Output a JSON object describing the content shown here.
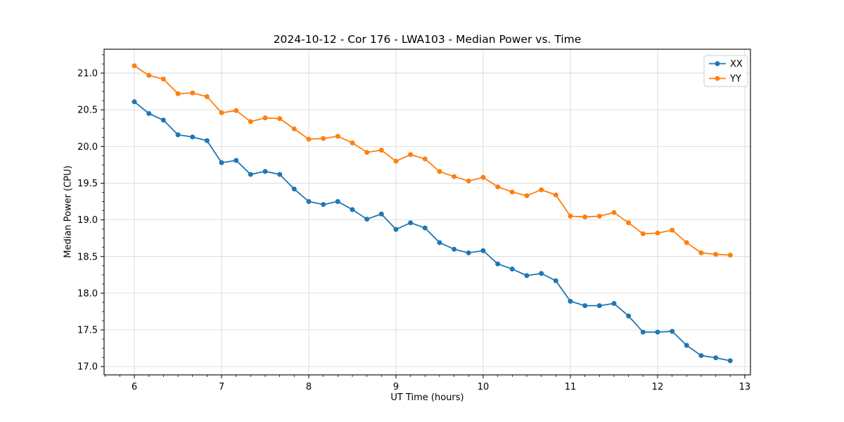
{
  "chart_data": {
    "type": "line",
    "title": "2024-10-12 - Cor 176 - LWA103 - Median Power vs. Time",
    "xlabel": "UT Time (hours)",
    "ylabel": "Median Power (CPU)",
    "legend_position": "upper right",
    "grid": true,
    "xlim": [
      5.653,
      13.065
    ],
    "ylim": [
      16.887,
      21.326
    ],
    "xticks": [
      6,
      7,
      8,
      9,
      10,
      11,
      12,
      13
    ],
    "yticks": [
      17.0,
      17.5,
      18.0,
      18.5,
      19.0,
      19.5,
      20.0,
      20.5,
      21.0
    ],
    "x": [
      6.0,
      6.167,
      6.333,
      6.5,
      6.667,
      6.833,
      7.0,
      7.167,
      7.333,
      7.5,
      7.667,
      7.833,
      8.0,
      8.167,
      8.333,
      8.5,
      8.667,
      8.833,
      9.0,
      9.167,
      9.333,
      9.5,
      9.667,
      9.833,
      10.0,
      10.167,
      10.333,
      10.5,
      10.667,
      10.833,
      11.0,
      11.167,
      11.333,
      11.5,
      11.667,
      11.833,
      12.0,
      12.167,
      12.333,
      12.5,
      12.667,
      12.833
    ],
    "series": [
      {
        "name": "XX",
        "color": "#1f77b4",
        "values": [
          20.61,
          20.45,
          20.36,
          20.16,
          20.13,
          20.08,
          19.78,
          19.81,
          19.62,
          19.66,
          19.62,
          19.42,
          19.25,
          19.21,
          19.25,
          19.14,
          19.01,
          19.08,
          18.87,
          18.96,
          18.89,
          18.69,
          18.6,
          18.55,
          18.58,
          18.4,
          18.33,
          18.24,
          18.27,
          18.17,
          17.89,
          17.83,
          17.83,
          17.86,
          17.69,
          17.47,
          17.47,
          17.48,
          17.29,
          17.15,
          17.12,
          17.08
        ]
      },
      {
        "name": "YY",
        "color": "#ff7f0e",
        "values": [
          21.1,
          20.97,
          20.92,
          20.72,
          20.73,
          20.68,
          20.46,
          20.49,
          20.34,
          20.39,
          20.38,
          20.24,
          20.1,
          20.11,
          20.14,
          20.05,
          19.92,
          19.95,
          19.8,
          19.89,
          19.83,
          19.66,
          19.59,
          19.53,
          19.58,
          19.45,
          19.38,
          19.33,
          19.41,
          19.34,
          19.05,
          19.04,
          19.05,
          19.1,
          18.96,
          18.81,
          18.82,
          18.86,
          18.69,
          18.55,
          18.53,
          18.52
        ]
      }
    ],
    "colors": {
      "grid": "#d9d9d9",
      "spine": "#000000",
      "legend_border": "#cccccc",
      "background": "#ffffff"
    }
  }
}
